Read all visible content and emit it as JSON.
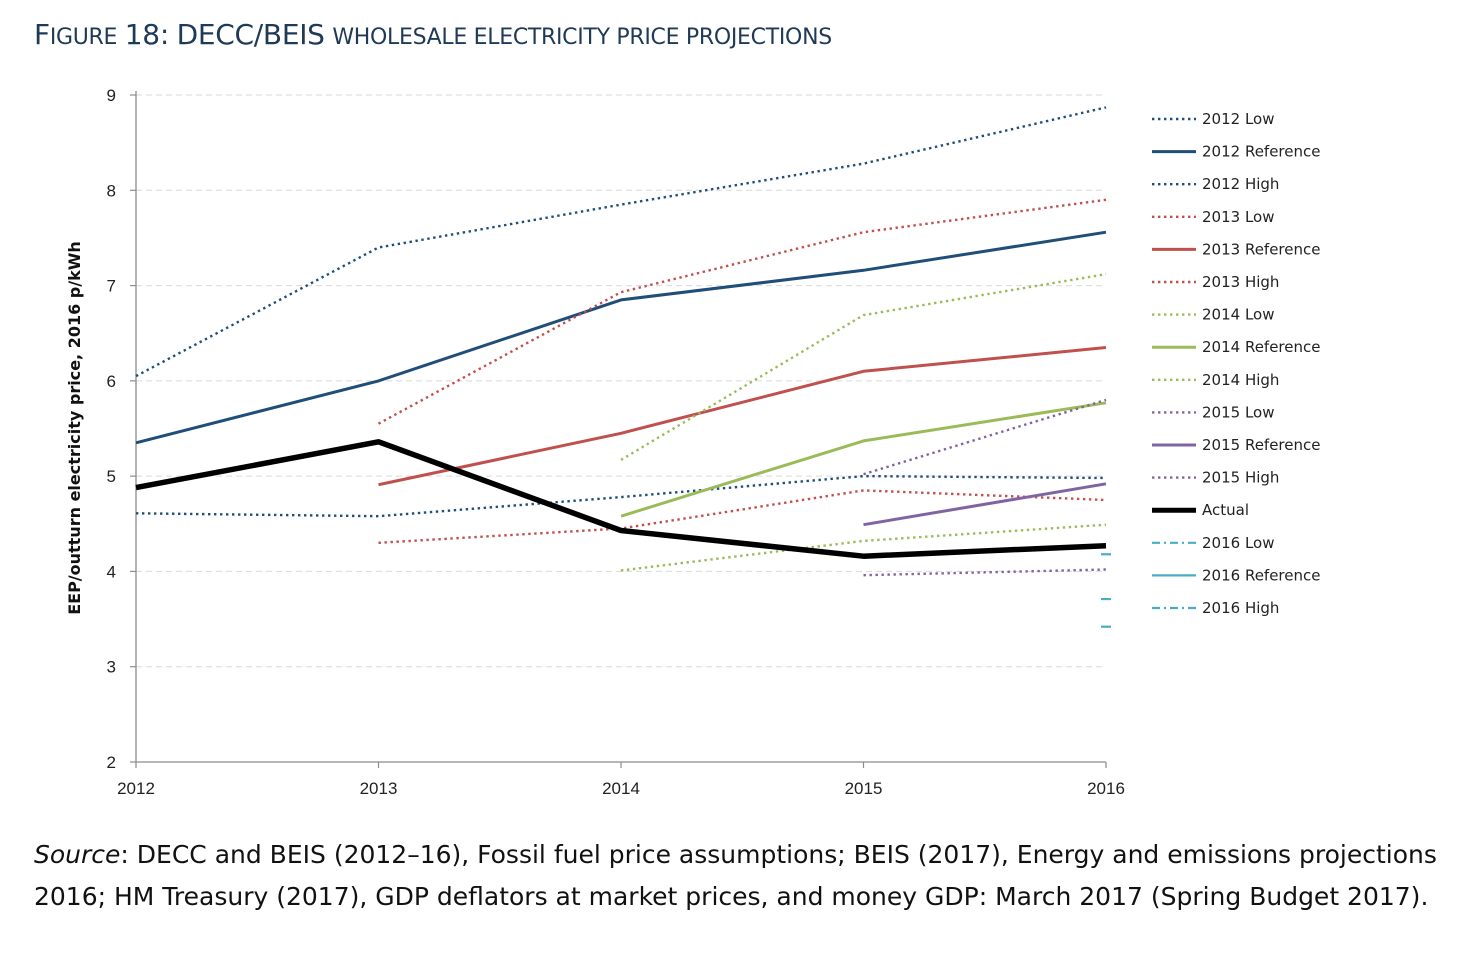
{
  "figure": {
    "title_prefix_first": "F",
    "title_prefix_rest": "IGURE",
    "title_num": "18:",
    "title_org": "DECC/BEIS",
    "title_rest": "WHOLESALE ELECTRICITY PRICE PROJECTIONS"
  },
  "source": {
    "label": "Source",
    "text": ": DECC and BEIS (2012–16), Fossil fuel price assumptions; BEIS (2017), Energy and emissions projections 2016; HM Treasury (2017), GDP deflators at market prices, and money GDP: March 2017 (Spring Budget 2017)."
  },
  "chart_data": {
    "type": "line",
    "title": "",
    "xlabel": "",
    "ylabel": "EEP/outturn electricity price, 2016 p/kWh",
    "x_ticks": [
      "2012",
      "2013",
      "2014",
      "2015",
      "2016"
    ],
    "y_ticks": [
      "2",
      "3",
      "4",
      "5",
      "6",
      "7",
      "8",
      "9"
    ],
    "xlim": [
      2012,
      2016
    ],
    "ylim": [
      2,
      9
    ],
    "grid": "horizontal-dashed",
    "legend_position": "right",
    "series": [
      {
        "name": "2012 Low",
        "color": "#1f4e79",
        "style": "dotted",
        "x": [
          2012,
          2013,
          2014,
          2015,
          2016
        ],
        "y": [
          4.61,
          4.58,
          4.78,
          5.0,
          4.98
        ]
      },
      {
        "name": "2012 Reference",
        "color": "#1f4e79",
        "style": "solid",
        "x": [
          2012,
          2013,
          2014,
          2015,
          2016
        ],
        "y": [
          5.35,
          6.0,
          6.85,
          7.16,
          7.56
        ]
      },
      {
        "name": "2012 High",
        "color": "#1f4e79",
        "style": "dotted",
        "x": [
          2012,
          2013,
          2014,
          2015,
          2016
        ],
        "y": [
          6.05,
          7.4,
          7.85,
          8.28,
          8.87
        ]
      },
      {
        "name": "2013 Low",
        "color": "#c0504d",
        "style": "dotted",
        "x": [
          2013,
          2014,
          2015,
          2016
        ],
        "y": [
          4.3,
          4.45,
          4.85,
          4.75
        ]
      },
      {
        "name": "2013 Reference",
        "color": "#c0504d",
        "style": "solid",
        "x": [
          2013,
          2014,
          2015,
          2016
        ],
        "y": [
          4.91,
          5.45,
          6.1,
          6.35
        ]
      },
      {
        "name": "2013 High",
        "color": "#c0504d",
        "style": "dotted",
        "x": [
          2013,
          2014,
          2015,
          2016
        ],
        "y": [
          5.55,
          6.93,
          7.56,
          7.9
        ]
      },
      {
        "name": "2014 Low",
        "color": "#9bbb59",
        "style": "dotted",
        "x": [
          2014,
          2015,
          2016
        ],
        "y": [
          4.01,
          4.32,
          4.49
        ]
      },
      {
        "name": "2014 Reference",
        "color": "#9bbb59",
        "style": "solid",
        "x": [
          2014,
          2015,
          2016
        ],
        "y": [
          4.58,
          5.37,
          5.77
        ]
      },
      {
        "name": "2014 High",
        "color": "#9bbb59",
        "style": "dotted",
        "x": [
          2014,
          2015,
          2016
        ],
        "y": [
          5.17,
          6.69,
          7.12
        ]
      },
      {
        "name": "2015 Low",
        "color": "#8064a2",
        "style": "dotted",
        "x": [
          2015,
          2016
        ],
        "y": [
          3.96,
          4.02
        ]
      },
      {
        "name": "2015 Reference",
        "color": "#8064a2",
        "style": "solid",
        "x": [
          2015,
          2016
        ],
        "y": [
          4.49,
          4.92
        ]
      },
      {
        "name": "2015 High",
        "color": "#8064a2",
        "style": "dotted",
        "x": [
          2015,
          2016
        ],
        "y": [
          5.02,
          5.8
        ]
      },
      {
        "name": "Actual",
        "color": "#000000",
        "style": "thick",
        "x": [
          2012,
          2013,
          2014,
          2015,
          2016
        ],
        "y": [
          4.88,
          5.36,
          4.43,
          4.16,
          4.27
        ]
      },
      {
        "name": "2016 Low",
        "color": "#4bacc6",
        "style": "dashdot",
        "x": [
          2016
        ],
        "y": [
          3.42
        ]
      },
      {
        "name": "2016 Reference",
        "color": "#4bacc6",
        "style": "solid-thin",
        "x": [
          2016
        ],
        "y": [
          3.71
        ]
      },
      {
        "name": "2016 High",
        "color": "#4bacc6",
        "style": "dashdot",
        "x": [
          2016
        ],
        "y": [
          4.18
        ]
      }
    ]
  }
}
